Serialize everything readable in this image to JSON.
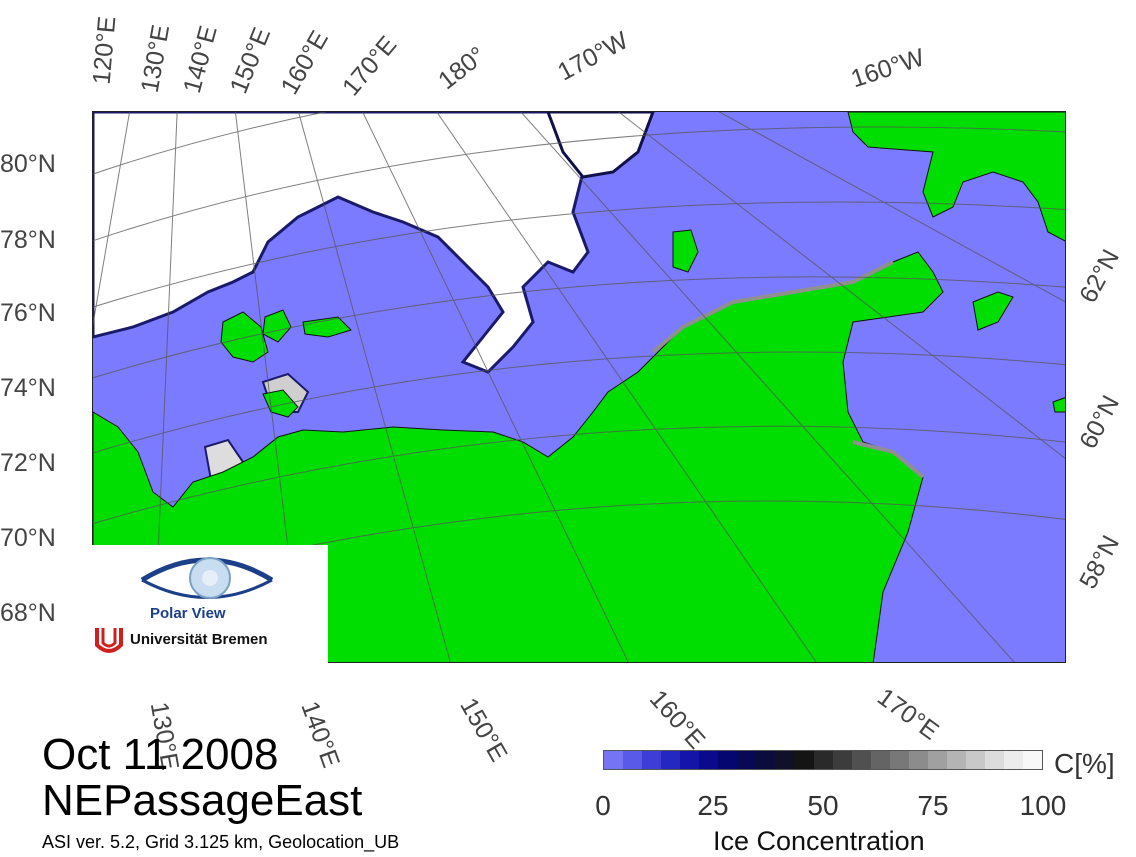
{
  "map": {
    "lat_labels": [
      "80°N",
      "78°N",
      "76°N",
      "74°N",
      "72°N",
      "70°N",
      "68°N"
    ],
    "top_lon_labels": [
      "120°E",
      "130°E",
      "140°E",
      "150°E",
      "160°E",
      "170°E",
      "180°",
      "170°W",
      "160°W"
    ],
    "bottom_lon_labels": [
      "130°E",
      "140°E",
      "150°E",
      "160°E",
      "170°E"
    ],
    "right_lat_labels": [
      "62°N",
      "60°N",
      "58°N"
    ],
    "colors": {
      "open_water": "#7b7bff",
      "land": "#00dd00",
      "coast_mask": "#8f8f8f",
      "sea_ice": "#ffffff",
      "grid_lines": "#555555"
    }
  },
  "logo": {
    "brand": "Polar View",
    "university": "Universität Bremen"
  },
  "header": {
    "date": "Oct 11 2008",
    "region": "NEPassageEast",
    "subtitle": "ASI ver. 5.2,  Grid 3.125 km, Geolocation_UB"
  },
  "colorbar": {
    "unit": "C[%]",
    "ticks": [
      "0",
      "25",
      "50",
      "75",
      "100"
    ],
    "label": "Ice Concentration",
    "colors": [
      "#7474f5",
      "#5a5ae8",
      "#3e3ed6",
      "#2626c0",
      "#1414a8",
      "#0a0a8c",
      "#060670",
      "#080855",
      "#0c0c3c",
      "#101028",
      "#141414",
      "#2a2a2a",
      "#3c3c3c",
      "#505050",
      "#646464",
      "#787878",
      "#8c8c8c",
      "#a0a0a0",
      "#b4b4b4",
      "#c8c8c8",
      "#dcdcdc",
      "#ececec",
      "#f8f8f8"
    ]
  }
}
